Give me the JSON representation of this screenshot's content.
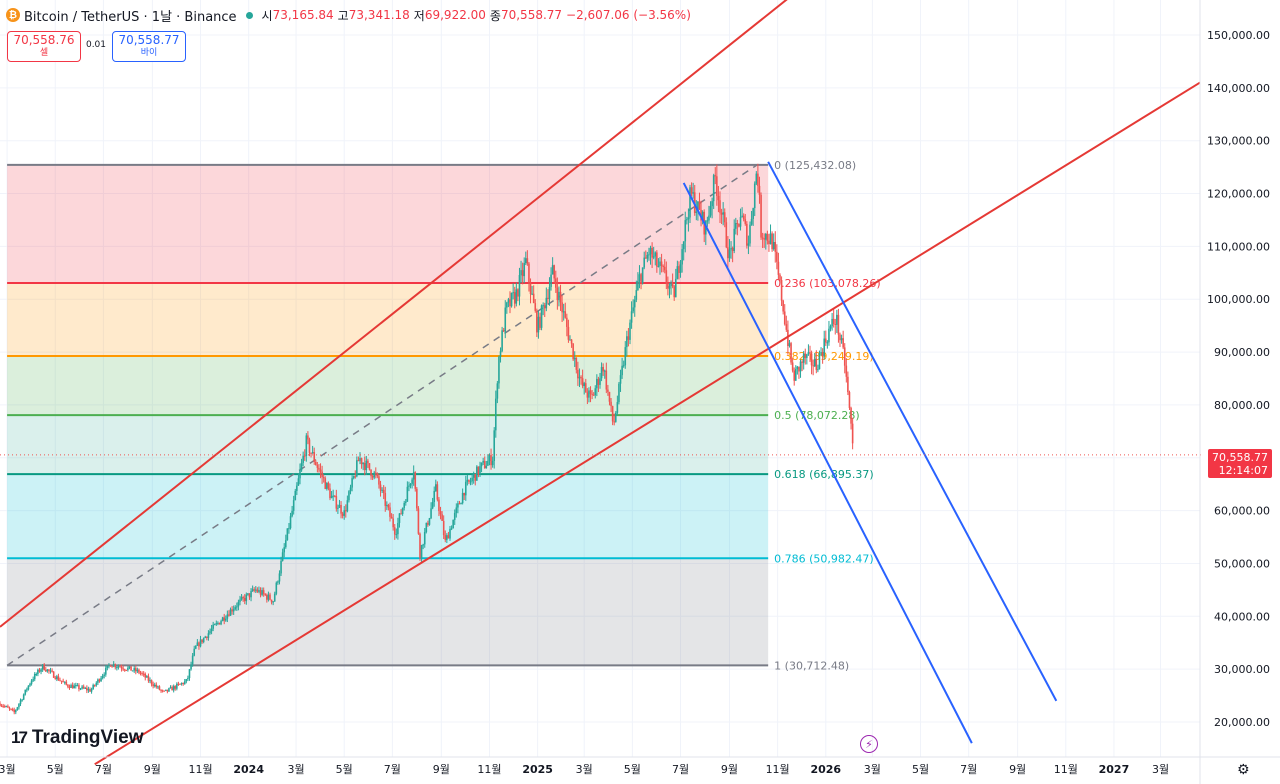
{
  "header": {
    "symbol": "Bitcoin / TetherUS · 1날 · Binance",
    "open_label": "시",
    "open": "73,165.84",
    "high_label": "고",
    "high": "73,341.18",
    "low_label": "저",
    "low": "69,922.00",
    "close_label": "종",
    "close": "70,558.77",
    "change": "−2,607.06 (−3.56%)"
  },
  "trade": {
    "sell_price": "70,558.76",
    "sell_label": "셀",
    "spread": "0.01",
    "buy_price": "70,558.77",
    "buy_label": "바이"
  },
  "last_price": {
    "price": "70,558.77",
    "countdown": "12:14:07"
  },
  "logo": "TradingView",
  "colors": {
    "up": "#26a69a",
    "down": "#ef5350",
    "red_channel": "#e53935",
    "blue_channel": "#2962ff",
    "fib_236": "#f23645",
    "fib_382": "#ff9800",
    "fib_5": "#4caf50",
    "fib_618": "#089981",
    "fib_786": "#00bcd4",
    "fib_grey": "#787b86"
  },
  "chart_data": {
    "type": "line",
    "title": "Bitcoin / TetherUS · 1날 · Binance",
    "y_axis": {
      "ticks": [
        20000,
        30000,
        40000,
        50000,
        60000,
        70000,
        80000,
        90000,
        100000,
        110000,
        120000,
        130000,
        140000,
        150000
      ],
      "tick_labels": [
        "20,000.00",
        "30,000.00",
        "40,000.00",
        "50,000.00",
        "60,000.00",
        "70,000.00",
        "80,000.00",
        "90,000.00",
        "100,000.00",
        "110,000.00",
        "120,000.00",
        "130,000.00",
        "140,000.00",
        "150,000.00"
      ],
      "ylim": [
        15000,
        155000
      ]
    },
    "x_axis": {
      "labels": [
        "3월",
        "5월",
        "7월",
        "9월",
        "11월",
        "2024",
        "3월",
        "5월",
        "7월",
        "9월",
        "11월",
        "2025",
        "3월",
        "5월",
        "7월",
        "9월",
        "11월",
        "2026",
        "3월",
        "5월",
        "7월",
        "9월",
        "11월",
        "2027",
        "3월"
      ],
      "dates": [
        "2023-03-01",
        "2023-05-01",
        "2023-07-01",
        "2023-09-01",
        "2023-11-01",
        "2024-01-01",
        "2024-03-01",
        "2024-05-01",
        "2024-07-01",
        "2024-09-01",
        "2024-11-01",
        "2025-01-01",
        "2025-03-01",
        "2025-05-01",
        "2025-07-01",
        "2025-09-01",
        "2025-11-01",
        "2026-01-01",
        "2026-03-01",
        "2026-05-01",
        "2026-07-01",
        "2026-09-01",
        "2026-11-01",
        "2027-01-01",
        "2027-03-01"
      ],
      "xlim": [
        "2023-02-20",
        "2027-04-20"
      ]
    },
    "series": [
      {
        "x": [
          "2023-02-20",
          "2023-03-10",
          "2023-04-01",
          "2023-04-15",
          "2023-05-15",
          "2023-06-15",
          "2023-07-10",
          "2023-08-15",
          "2023-09-15",
          "2023-10-15",
          "2023-10-25",
          "2023-11-15",
          "2023-12-15",
          "2024-01-10",
          "2024-02-01",
          "2024-02-28",
          "2024-03-14",
          "2024-04-15",
          "2024-05-01",
          "2024-05-20",
          "2024-06-10",
          "2024-07-05",
          "2024-07-28",
          "2024-08-05",
          "2024-08-25",
          "2024-09-06",
          "2024-09-30",
          "2024-10-20",
          "2024-11-05",
          "2024-11-12",
          "2024-11-22",
          "2024-12-05",
          "2024-12-17",
          "2025-01-01",
          "2025-01-20",
          "2025-02-03",
          "2025-02-25",
          "2025-03-10",
          "2025-03-25",
          "2025-04-07",
          "2025-04-25",
          "2025-05-10",
          "2025-05-22",
          "2025-06-10",
          "2025-06-22",
          "2025-07-14",
          "2025-08-02",
          "2025-08-14",
          "2025-09-01",
          "2025-09-15",
          "2025-09-25",
          "2025-10-06",
          "2025-10-11",
          "2025-10-25",
          "2025-11-05",
          "2025-11-21",
          "2025-12-05",
          "2025-12-20",
          "2026-01-05",
          "2026-01-14",
          "2026-01-25",
          "2026-02-02",
          "2026-02-05"
        ],
        "values": [
          23500,
          21800,
          28000,
          30500,
          27000,
          26000,
          31000,
          29500,
          25500,
          27800,
          34000,
          37500,
          42000,
          45000,
          43000,
          62000,
          73000,
          62500,
          59500,
          70000,
          66500,
          56000,
          68000,
          52000,
          64000,
          54000,
          64000,
          68000,
          70000,
          88000,
          98000,
          101000,
          107000,
          94500,
          105000,
          97000,
          84000,
          81000,
          87500,
          76000,
          93000,
          104000,
          109000,
          104500,
          100500,
          120000,
          113500,
          123000,
          108000,
          116000,
          111000,
          125400,
          113000,
          111000,
          101500,
          85000,
          89000,
          87500,
          94000,
          96500,
          88000,
          76000,
          70558
        ]
      }
    ],
    "fibonacci": {
      "start_date": "2023-03-01",
      "end_date": "2025-10-20",
      "levels": [
        {
          "ratio": "1",
          "price": 30712.48,
          "label": "1 (30,712.48)"
        },
        {
          "ratio": "0.786",
          "price": 50982.47,
          "label": "0.786 (50,982.47)"
        },
        {
          "ratio": "0.618",
          "price": 66895.37,
          "label": "0.618 (66,895.37)"
        },
        {
          "ratio": "0.5",
          "price": 78072.28,
          "label": "0.5 (78,072.28)"
        },
        {
          "ratio": "0.382",
          "price": 89249.19,
          "label": "0.382 (89,249.19)"
        },
        {
          "ratio": "0.236",
          "price": 103078.26,
          "label": "0.236 (103,078.26)"
        },
        {
          "ratio": "0",
          "price": 125432.08,
          "label": "0 (125,432.08)"
        }
      ]
    },
    "trend_channels": [
      {
        "color": "red",
        "lines": [
          [
            [
              "2023-02-20",
              38000
            ],
            [
              "2026-04-15",
              175000
            ]
          ],
          [
            [
              "2023-06-20",
              12000
            ],
            [
              "2027-04-20",
              141000
            ]
          ]
        ]
      },
      {
        "color": "blue",
        "lines": [
          [
            [
              "2025-07-05",
              122000
            ],
            [
              "2026-07-05",
              16000
            ]
          ],
          [
            [
              "2025-10-20",
              126000
            ],
            [
              "2026-10-20",
              24000
            ]
          ]
        ]
      }
    ],
    "dashed_line": [
      [
        "2023-03-01",
        30712
      ],
      [
        "2025-10-06",
        125432
      ]
    ]
  }
}
